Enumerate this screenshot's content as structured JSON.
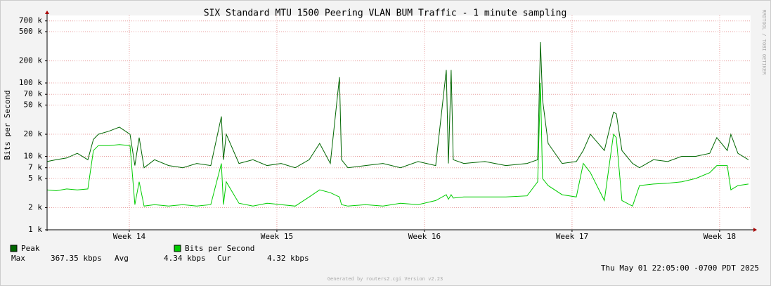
{
  "chart_data": {
    "type": "line",
    "title": "SIX Standard MTU 1500 Peering VLAN BUM Traffic - 1 minute sampling",
    "y_label": "Bits per Second",
    "side_label": "RRDTOOL / TOBI OETIKER",
    "footer": "Generated by routers2.cgi Version v2.23",
    "timestamp": "Thu May 01 22:05:00 -0700 PDT 2025",
    "yscale": "log",
    "grid": true,
    "step": true,
    "xlim": [
      13.443,
      18.21
    ],
    "xticks": [
      {
        "value": 14,
        "label": "Week 14"
      },
      {
        "value": 15,
        "label": "Week 15"
      },
      {
        "value": 16,
        "label": "Week 16"
      },
      {
        "value": 17,
        "label": "Week 17"
      },
      {
        "value": 18,
        "label": "Week 18"
      }
    ],
    "ylim": [
      1000,
      830000
    ],
    "yticks": [
      {
        "value": 1000,
        "label": "1 k"
      },
      {
        "value": 2000,
        "label": "2 k"
      },
      {
        "value": 5000,
        "label": "5 k"
      },
      {
        "value": 7000,
        "label": "7 k"
      },
      {
        "value": 10000,
        "label": "10 k"
      },
      {
        "value": 20000,
        "label": "20 k"
      },
      {
        "value": 50000,
        "label": "50 k"
      },
      {
        "value": 70000,
        "label": "70 k"
      },
      {
        "value": 100000,
        "label": "100 k"
      },
      {
        "value": 200000,
        "label": "200 k"
      },
      {
        "value": 500000,
        "label": "500 k"
      },
      {
        "value": 700000,
        "label": "700 k"
      }
    ],
    "x": [
      13.443,
      13.505,
      13.576,
      13.648,
      13.719,
      13.757,
      13.79,
      13.862,
      13.933,
      14.005,
      14.038,
      14.067,
      14.1,
      14.171,
      14.267,
      14.362,
      14.457,
      14.552,
      14.624,
      14.638,
      14.657,
      14.743,
      14.838,
      14.933,
      15.029,
      15.124,
      15.219,
      15.29,
      15.362,
      15.424,
      15.438,
      15.481,
      15.6,
      15.719,
      15.838,
      15.957,
      16.076,
      16.148,
      16.162,
      16.181,
      16.195,
      16.267,
      16.41,
      16.552,
      16.695,
      16.767,
      16.786,
      16.8,
      16.838,
      16.933,
      17.029,
      17.076,
      17.124,
      17.219,
      17.281,
      17.3,
      17.338,
      17.41,
      17.457,
      17.552,
      17.648,
      17.743,
      17.838,
      17.933,
      17.981,
      18.052,
      18.076,
      18.124,
      18.195
    ],
    "series": [
      {
        "name": "Peak",
        "color": "#006600",
        "values": [
          8500,
          9000,
          9500,
          11000,
          9000,
          17000,
          20000,
          22000,
          25000,
          20000,
          7500,
          18000,
          7000,
          9000,
          7500,
          7000,
          8000,
          7500,
          35000,
          9000,
          20000,
          8000,
          9000,
          7500,
          8000,
          7000,
          9000,
          15000,
          8000,
          120000,
          9000,
          7000,
          7500,
          8000,
          7000,
          8500,
          7500,
          150000,
          8000,
          150000,
          9000,
          8000,
          8500,
          7500,
          8000,
          9000,
          360000,
          60000,
          15000,
          8000,
          8500,
          12000,
          20000,
          12000,
          40000,
          38000,
          12000,
          8000,
          7000,
          9000,
          8500,
          10000,
          10000,
          11000,
          18000,
          12000,
          20000,
          11000,
          9000
        ]
      },
      {
        "name": "Bits per Second",
        "color": "#00cc00",
        "values": [
          3500,
          3400,
          3600,
          3500,
          3600,
          12000,
          14000,
          14000,
          14500,
          14000,
          2200,
          4500,
          2100,
          2200,
          2100,
          2200,
          2100,
          2200,
          8000,
          2200,
          4500,
          2300,
          2100,
          2300,
          2200,
          2100,
          2800,
          3500,
          3200,
          2800,
          2200,
          2100,
          2200,
          2100,
          2300,
          2200,
          2500,
          3000,
          2600,
          3000,
          2700,
          2800,
          2800,
          2800,
          2900,
          4500,
          100000,
          5000,
          4000,
          3000,
          2800,
          8000,
          6000,
          2500,
          20000,
          18000,
          2500,
          2100,
          4000,
          4200,
          4300,
          4500,
          5000,
          6000,
          7500,
          7500,
          3500,
          4000,
          4200
        ]
      }
    ],
    "stats": [
      {
        "label": "Max",
        "value": "367.35 kbps"
      },
      {
        "label": "Avg",
        "value": "4.34 kbps"
      },
      {
        "label": "Cur",
        "value": "4.32 kbps"
      }
    ]
  }
}
